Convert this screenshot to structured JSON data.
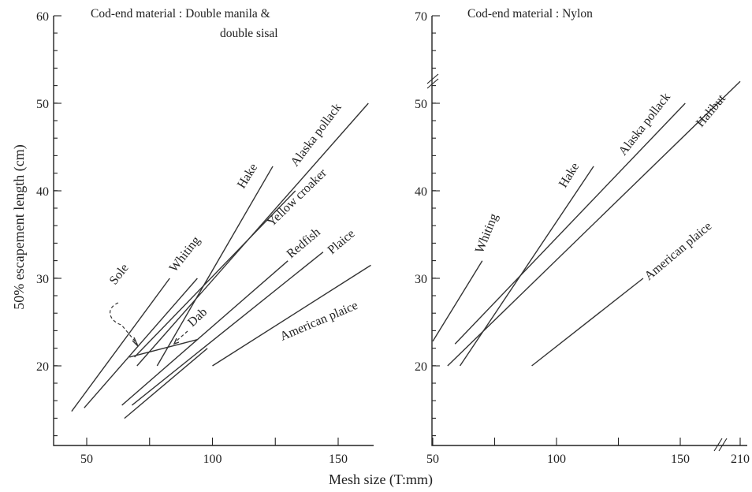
{
  "xlabel": "Mesh size (T:mm)",
  "ylabel": "50% escapement length (cm)",
  "chart_data": [
    {
      "type": "line",
      "title": "Cod-end material : Double manila &",
      "title2": "double sisal",
      "xlim": [
        38,
        165
      ],
      "ylim": [
        11.5,
        60
      ],
      "xticks": [
        50,
        100,
        150
      ],
      "yticks": [
        20,
        30,
        40,
        50,
        60
      ],
      "series": [
        {
          "name": "Sole",
          "x": [
            44,
            83
          ],
          "y": [
            14.8,
            30
          ]
        },
        {
          "name": "Whiting",
          "x": [
            49,
            94
          ],
          "y": [
            15.2,
            30
          ]
        },
        {
          "name": "Hake",
          "x": [
            78,
            124
          ],
          "y": [
            20,
            42.8
          ]
        },
        {
          "name": "Alaska pollack",
          "x": [
            70,
            162
          ],
          "y": [
            20,
            50
          ]
        },
        {
          "name": "Yellow croaker",
          "x": [
            69,
            133
          ],
          "y": [
            21,
            40
          ]
        },
        {
          "name": "Redfish",
          "x": [
            64,
            130
          ],
          "y": [
            15.5,
            32
          ]
        },
        {
          "name": "Plaice",
          "x": [
            68,
            144
          ],
          "y": [
            15.5,
            33
          ]
        },
        {
          "name": "Dab",
          "x": [
            67,
            94
          ],
          "y": [
            21,
            23
          ]
        },
        {
          "name": "",
          "x": [
            65,
            98
          ],
          "y": [
            14,
            22
          ]
        },
        {
          "name": "American plaice",
          "x": [
            100,
            163
          ],
          "y": [
            20,
            31.5
          ]
        }
      ],
      "annotations": [
        "Sole",
        "Dab"
      ]
    },
    {
      "type": "line",
      "title": "Cod-end material : Nylon",
      "xlim": [
        50,
        212
      ],
      "ylim": [
        11.5,
        70
      ],
      "xticks": [
        50,
        100,
        150,
        210
      ],
      "yticks": [
        20,
        30,
        40,
        50,
        70
      ],
      "series": [
        {
          "name": "Whiting",
          "x": [
            50,
            70
          ],
          "y": [
            22.8,
            32
          ]
        },
        {
          "name": "Hake",
          "x": [
            61,
            115
          ],
          "y": [
            20,
            42.8
          ]
        },
        {
          "name": "Alaska pollack",
          "x": [
            59,
            152
          ],
          "y": [
            22.5,
            50
          ]
        },
        {
          "name": "Halibut",
          "x": [
            56,
            210
          ],
          "y": [
            20,
            55
          ]
        },
        {
          "name": "American plaice",
          "x": [
            90,
            135
          ],
          "y": [
            20,
            30
          ]
        }
      ]
    }
  ]
}
